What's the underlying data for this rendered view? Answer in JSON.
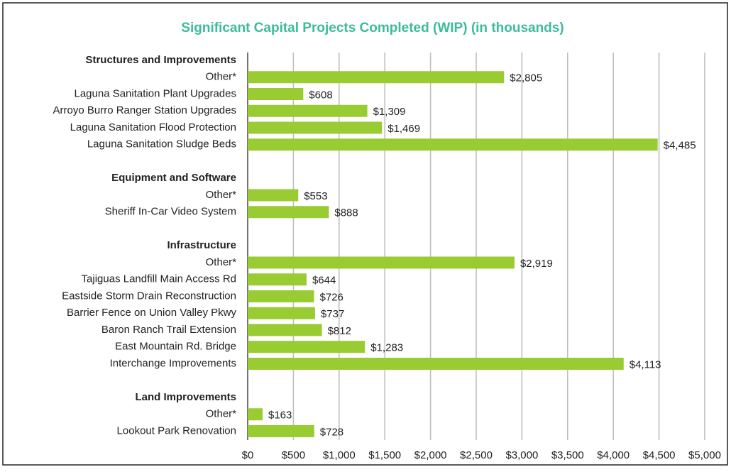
{
  "chart_data": {
    "type": "hbar",
    "title": "Significant Capital Projects Completed (WIP) (in thousands)",
    "categories": [
      "Structures and Improvements",
      "Other*",
      "Laguna Sanitation Plant Upgrades",
      "Arroyo Burro Ranger Station Upgrades",
      "Laguna Sanitation Flood Protection",
      "Laguna Sanitation Sludge Beds",
      null,
      "Equipment and Software",
      "Other*",
      "Sheriff In-Car Video System",
      null,
      "Infrastructure",
      "Other*",
      "Tajiguas Landfill Main Access Rd",
      "Eastside Storm Drain Reconstruction",
      "Barrier Fence on Union Valley Pkwy",
      "Baron Ranch Trail Extension",
      "East Mountain Rd. Bridge",
      "Interchange Improvements",
      null,
      "Land Improvements",
      "Other*",
      "Lookout Park Renovation"
    ],
    "values": [
      null,
      2805,
      608,
      1309,
      1469,
      4485,
      null,
      null,
      553,
      888,
      null,
      null,
      2919,
      644,
      726,
      737,
      812,
      1283,
      4113,
      null,
      null,
      163,
      728
    ],
    "value_labels": [
      null,
      "$2,805",
      "$608",
      "$1,309",
      "$1,469",
      "$4,485",
      null,
      null,
      "$553",
      "$888",
      null,
      null,
      "$2,919",
      "$644",
      "$726",
      "$737",
      "$812",
      "$1,283",
      "$4,113",
      null,
      null,
      "$163",
      "$728"
    ],
    "color": "#99cc33",
    "xlim": [
      0,
      5000
    ],
    "xticks": [
      {
        "value": 0,
        "label": "$0"
      },
      {
        "value": 500,
        "label": "$500"
      },
      {
        "value": 1000,
        "label": "$1,000"
      },
      {
        "value": 1500,
        "label": "$1,500"
      },
      {
        "value": 2000,
        "label": "$2,000"
      },
      {
        "value": 2500,
        "label": "$2,500"
      },
      {
        "value": 3000,
        "label": "$3,000"
      },
      {
        "value": 3500,
        "label": "$3,500"
      },
      {
        "value": 4000,
        "label": "$4,000"
      },
      {
        "value": 4500,
        "label": "$4,500"
      },
      {
        "value": 5000,
        "label": "$5,000"
      }
    ],
    "grid": true
  }
}
